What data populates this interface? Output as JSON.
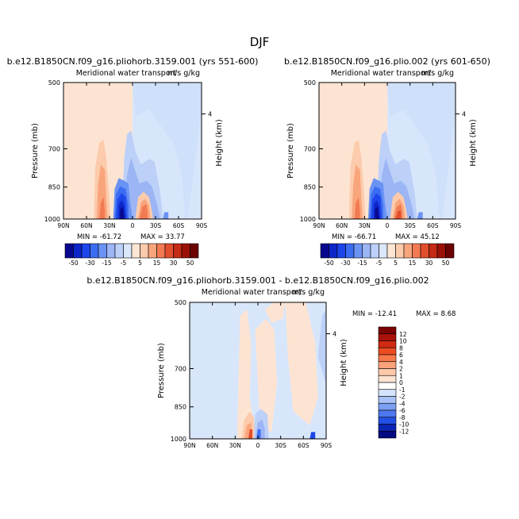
{
  "figure_title": "DJF",
  "chart_data": [
    {
      "type": "heatmap",
      "title": "b.e12.B1850CN.f09_g16.pliohorb.3159.001 (yrs 551-600)",
      "subtitle": "Meridional water transport",
      "units": "m/s g/kg",
      "ylabel": "Pressure (mb)",
      "ylabel_right": "Height (km)",
      "x_ticks": [
        "90N",
        "60N",
        "30N",
        "0",
        "30S",
        "60S",
        "90S"
      ],
      "y_ticks": [
        "500",
        "700",
        "850",
        "1000"
      ],
      "y_right_ticks": [
        "4"
      ],
      "min_label": "MIN = -61.72",
      "max_label": "MAX =  33.77",
      "min": -61.72,
      "max": 33.77,
      "colorbar_labels": [
        "-50",
        "-30",
        "-15",
        "-5",
        "5",
        "15",
        "30",
        "50"
      ],
      "colorbar_levels": [
        -50,
        -40,
        -30,
        -20,
        -15,
        -10,
        -5,
        -1,
        1,
        5,
        10,
        15,
        20,
        30,
        40,
        50
      ]
    },
    {
      "type": "heatmap",
      "title": "b.e12.B1850CN.f09_g16.plio.002 (yrs 601-650)",
      "subtitle": "Meridional water transport",
      "units": "m/s g/kg",
      "ylabel": "Pressure (mb)",
      "ylabel_right": "Height (km)",
      "x_ticks": [
        "90N",
        "60N",
        "30N",
        "0",
        "30S",
        "60S",
        "90S"
      ],
      "y_ticks": [
        "500",
        "700",
        "850",
        "1000"
      ],
      "y_right_ticks": [
        "4"
      ],
      "min_label": "MIN = -66.71",
      "max_label": "MAX =  45.12",
      "min": -66.71,
      "max": 45.12,
      "colorbar_labels": [
        "-50",
        "-30",
        "-15",
        "-5",
        "5",
        "15",
        "30",
        "50"
      ],
      "colorbar_levels": [
        -50,
        -40,
        -30,
        -20,
        -15,
        -10,
        -5,
        -1,
        1,
        5,
        10,
        15,
        20,
        30,
        40,
        50
      ]
    },
    {
      "type": "heatmap",
      "title": "b.e12.B1850CN.f09_g16.pliohorb.3159.001 - b.e12.B1850CN.f09_g16.plio.002",
      "subtitle": "Meridional water transport",
      "units": "m/s g/kg",
      "ylabel": "Pressure (mb)",
      "ylabel_right": "Height (km)",
      "x_ticks": [
        "90N",
        "60N",
        "30N",
        "0",
        "30S",
        "60S",
        "90S"
      ],
      "y_ticks": [
        "500",
        "700",
        "850",
        "1000"
      ],
      "y_right_ticks": [
        "4"
      ],
      "min_label": "MIN = -12.41",
      "max_label": "MAX =   8.68",
      "min": -12.41,
      "max": 8.68,
      "colorbar_labels": [
        "12",
        "10",
        "8",
        "6",
        "4",
        "2",
        "1",
        "0",
        "-1",
        "-2",
        "-4",
        "-6",
        "-8",
        "-10",
        "-12"
      ]
    }
  ]
}
